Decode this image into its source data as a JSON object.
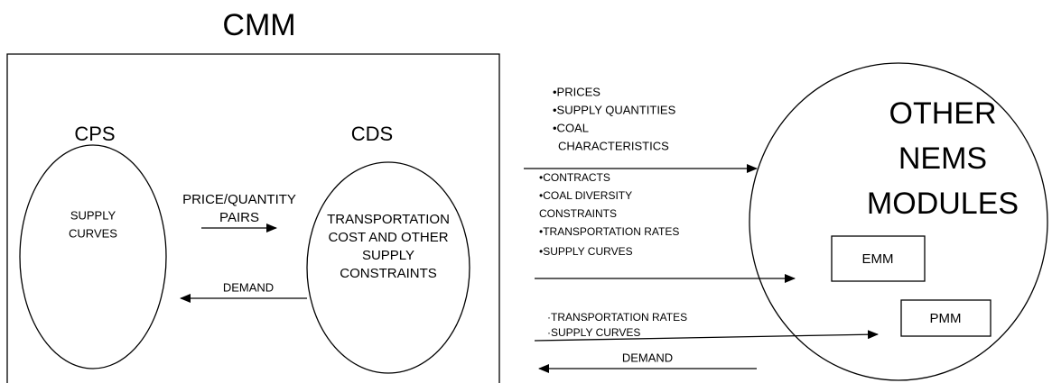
{
  "title": "CMM",
  "cps": {
    "label": "CPS",
    "lines": [
      "SUPPLY",
      "CURVES"
    ]
  },
  "cds": {
    "label": "CDS",
    "lines": [
      "TRANSPORTATION",
      "COST AND OTHER",
      "SUPPLY",
      "CONSTRAINTS"
    ]
  },
  "internal_arrows": {
    "forward": [
      "PRICE/QUANTITY",
      "PAIRS"
    ],
    "back": "DEMAND"
  },
  "outputs_1": [
    "•PRICES",
    "•SUPPLY QUANTITIES",
    "•COAL",
    "CHARACTERISTICS"
  ],
  "outputs_2": [
    "•CONTRACTS",
    "•COAL DIVERSITY",
    "CONSTRAINTS",
    "•TRANSPORTATION RATES",
    "•SUPPLY CURVES"
  ],
  "outputs_3": [
    "·TRANSPORTATION RATES",
    "·SUPPLY CURVES"
  ],
  "input": "DEMAND",
  "other": {
    "lines": [
      "OTHER",
      "NEMS",
      "MODULES"
    ],
    "emm": "EMM",
    "pmm": "PMM"
  }
}
